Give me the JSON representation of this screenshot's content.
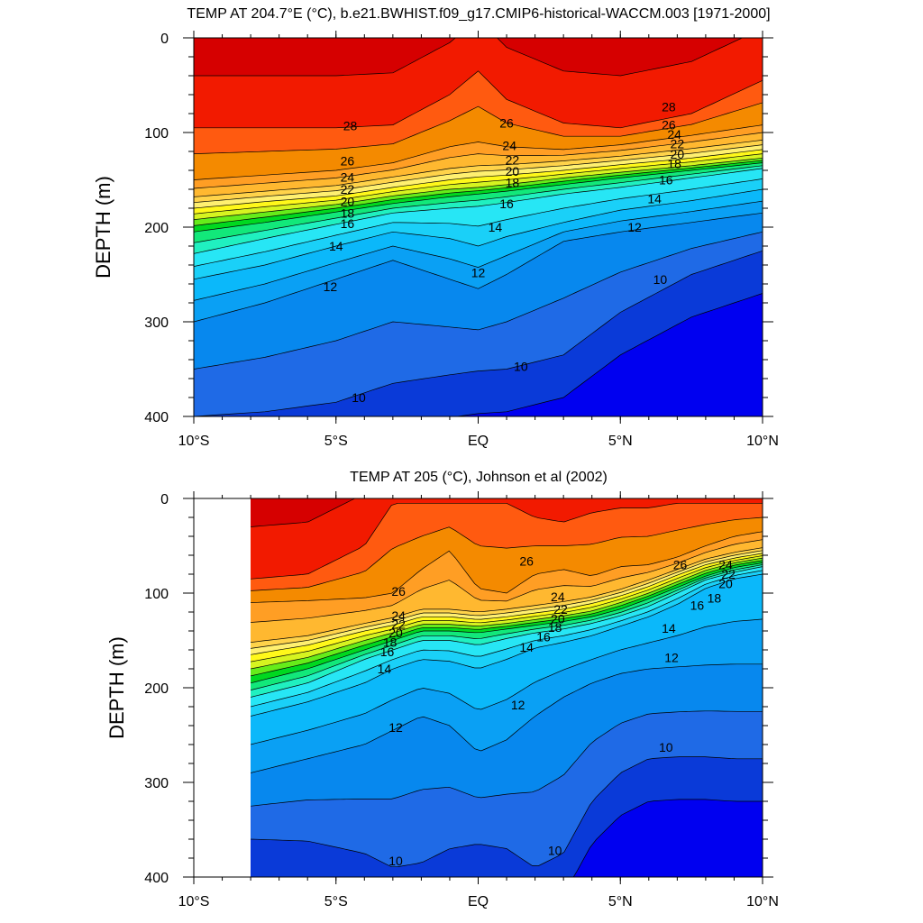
{
  "chart_data": [
    {
      "type": "contour",
      "title": "TEMP AT 204.7°E (°C), b.e21.BWHIST.f09_g17.CMIP6-historical-WACCM.003 [1971-2000]",
      "xlabel": "",
      "ylabel": "DEPTH (m)",
      "xlim": [
        -10,
        10
      ],
      "ylim": [
        400,
        0
      ],
      "x_ticks": [
        -10,
        -5,
        0,
        5,
        10
      ],
      "x_tick_labels": [
        "10°S",
        "5°S",
        "EQ",
        "5°N",
        "10°N"
      ],
      "y_ticks": [
        0,
        100,
        200,
        300,
        400
      ],
      "y_tick_labels": [
        "0",
        "100",
        "200",
        "300",
        "400"
      ],
      "data_x_range": [
        -10,
        10
      ],
      "contour_levels": [
        8,
        9,
        10,
        11,
        12,
        13,
        14,
        15,
        16,
        17,
        18,
        19,
        20,
        21,
        22,
        23,
        24,
        25,
        26,
        27,
        28,
        29
      ],
      "isotherm_depths": {
        "x": [
          -10,
          -7.5,
          -5,
          -3,
          -1,
          0,
          1,
          3,
          5,
          7.5,
          10
        ],
        "t10": [
          400,
          395,
          385,
          365,
          356,
          352,
          350,
          335,
          290,
          250,
          225
        ],
        "t12": [
          300,
          280,
          255,
          235,
          255,
          265,
          250,
          215,
          205,
          195,
          185
        ],
        "t14": [
          255,
          240,
          220,
          205,
          212,
          220,
          210,
          195,
          182,
          172,
          160
        ],
        "t16": [
          228,
          212,
          197,
          185,
          180,
          178,
          174,
          165,
          158,
          148,
          138
        ],
        "t18": [
          205,
          195,
          184,
          175,
          168,
          165,
          162,
          155,
          148,
          140,
          132
        ],
        "t20": [
          192,
          184,
          176,
          167,
          160,
          158,
          155,
          148,
          142,
          135,
          127
        ],
        "t22": [
          180,
          173,
          167,
          158,
          150,
          147,
          145,
          140,
          134,
          127,
          118
        ],
        "t24": [
          168,
          162,
          156,
          147,
          138,
          135,
          134,
          130,
          125,
          117,
          108
        ],
        "t26": [
          150,
          145,
          140,
          132,
          115,
          110,
          115,
          118,
          113,
          103,
          92
        ],
        "t28": [
          95,
          95,
          95,
          92,
          60,
          35,
          65,
          90,
          95,
          80,
          45
        ]
      },
      "contour_labels": [
        {
          "text": "28",
          "x": -4.5,
          "depth": 93
        },
        {
          "text": "26",
          "x": -4.6,
          "depth": 130
        },
        {
          "text": "24",
          "x": -4.6,
          "depth": 147
        },
        {
          "text": "22",
          "x": -4.6,
          "depth": 160
        },
        {
          "text": "20",
          "x": -4.6,
          "depth": 173
        },
        {
          "text": "18",
          "x": -4.6,
          "depth": 185
        },
        {
          "text": "16",
          "x": -4.6,
          "depth": 196
        },
        {
          "text": "14",
          "x": -5.0,
          "depth": 220
        },
        {
          "text": "12",
          "x": -5.2,
          "depth": 263
        },
        {
          "text": "10",
          "x": -4.2,
          "depth": 380
        },
        {
          "text": "26",
          "x": 1.0,
          "depth": 90
        },
        {
          "text": "24",
          "x": 1.1,
          "depth": 114
        },
        {
          "text": "22",
          "x": 1.2,
          "depth": 129
        },
        {
          "text": "20",
          "x": 1.2,
          "depth": 141
        },
        {
          "text": "18",
          "x": 1.2,
          "depth": 153
        },
        {
          "text": "16",
          "x": 1.0,
          "depth": 175
        },
        {
          "text": "14",
          "x": 0.6,
          "depth": 200
        },
        {
          "text": "12",
          "x": 0.0,
          "depth": 248
        },
        {
          "text": "10",
          "x": 1.5,
          "depth": 347
        },
        {
          "text": "28",
          "x": 6.7,
          "depth": 73
        },
        {
          "text": "26",
          "x": 6.7,
          "depth": 92
        },
        {
          "text": "24",
          "x": 6.9,
          "depth": 102
        },
        {
          "text": "22",
          "x": 7.0,
          "depth": 112
        },
        {
          "text": "20",
          "x": 7.0,
          "depth": 123
        },
        {
          "text": "18",
          "x": 6.9,
          "depth": 133
        },
        {
          "text": "16",
          "x": 6.6,
          "depth": 150
        },
        {
          "text": "14",
          "x": 6.2,
          "depth": 170
        },
        {
          "text": "12",
          "x": 5.5,
          "depth": 200
        },
        {
          "text": "10",
          "x": 6.4,
          "depth": 255
        }
      ]
    },
    {
      "type": "contour",
      "title": "TEMP AT 205 (°C), Johnson et al (2002)",
      "xlabel": "",
      "ylabel": "DEPTH (m)",
      "xlim": [
        -10,
        10
      ],
      "ylim": [
        400,
        0
      ],
      "x_ticks": [
        -10,
        -5,
        0,
        5,
        10
      ],
      "x_tick_labels": [
        "10°S",
        "5°S",
        "EQ",
        "5°N",
        "10°N"
      ],
      "y_ticks": [
        0,
        100,
        200,
        300,
        400
      ],
      "y_tick_labels": [
        "0",
        "100",
        "200",
        "300",
        "400"
      ],
      "data_x_range": [
        -8,
        10
      ],
      "contour_levels": [
        8,
        9,
        10,
        11,
        12,
        13,
        14,
        15,
        16,
        17,
        18,
        19,
        20,
        21,
        22,
        23,
        24,
        25,
        26,
        27,
        28,
        29
      ],
      "isotherm_depths": {
        "x": [
          -8,
          -6,
          -4,
          -3,
          -2,
          -1,
          0,
          1,
          2,
          3,
          4,
          5,
          6,
          7,
          8,
          9,
          10
        ],
        "t10": [
          360,
          362,
          375,
          390,
          385,
          370,
          365,
          370,
          390,
          375,
          320,
          290,
          275,
          273,
          273,
          275,
          275
        ],
        "t12": [
          290,
          275,
          260,
          245,
          230,
          240,
          268,
          255,
          230,
          210,
          195,
          185,
          180,
          178,
          176,
          175,
          175
        ],
        "t14": [
          230,
          215,
          195,
          180,
          170,
          172,
          180,
          170,
          158,
          152,
          145,
          135,
          125,
          112,
          95,
          85,
          80
        ],
        "t16": [
          210,
          195,
          170,
          160,
          150,
          150,
          155,
          148,
          142,
          138,
          132,
          124,
          114,
          100,
          86,
          78,
          72
        ],
        "t18": [
          195,
          180,
          160,
          150,
          140,
          140,
          142,
          138,
          134,
          130,
          125,
          117,
          106,
          94,
          82,
          73,
          68
        ],
        "t20": [
          180,
          168,
          150,
          142,
          133,
          133,
          135,
          132,
          128,
          124,
          119,
          110,
          100,
          88,
          76,
          68,
          63
        ],
        "t22": [
          165,
          155,
          140,
          134,
          125,
          125,
          128,
          125,
          121,
          117,
          111,
          103,
          93,
          81,
          70,
          63,
          58
        ],
        "t24": [
          152,
          145,
          132,
          126,
          117,
          117,
          120,
          117,
          113,
          109,
          104,
          96,
          86,
          75,
          64,
          57,
          52
        ],
        "t26": [
          110,
          108,
          105,
          100,
          75,
          55,
          95,
          100,
          80,
          75,
          82,
          72,
          70,
          62,
          50,
          40,
          35
        ],
        "t28": [
          85,
          80,
          50,
          5,
          5,
          5,
          5,
          5,
          20,
          25,
          15,
          10,
          10,
          5,
          5,
          5,
          5
        ]
      },
      "contour_labels": [
        {
          "text": "26",
          "x": -2.8,
          "depth": 98
        },
        {
          "text": "24",
          "x": -2.8,
          "depth": 124
        },
        {
          "text": "22",
          "x": -2.8,
          "depth": 133
        },
        {
          "text": "20",
          "x": -2.9,
          "depth": 142
        },
        {
          "text": "18",
          "x": -3.1,
          "depth": 152
        },
        {
          "text": "16",
          "x": -3.2,
          "depth": 162
        },
        {
          "text": "14",
          "x": -3.3,
          "depth": 180
        },
        {
          "text": "12",
          "x": -2.9,
          "depth": 242
        },
        {
          "text": "10",
          "x": -2.9,
          "depth": 383
        },
        {
          "text": "26",
          "x": 1.7,
          "depth": 66
        },
        {
          "text": "24",
          "x": 2.8,
          "depth": 104
        },
        {
          "text": "22",
          "x": 2.9,
          "depth": 117
        },
        {
          "text": "20",
          "x": 2.8,
          "depth": 127
        },
        {
          "text": "18",
          "x": 2.7,
          "depth": 136
        },
        {
          "text": "16",
          "x": 2.3,
          "depth": 146
        },
        {
          "text": "14",
          "x": 1.7,
          "depth": 157
        },
        {
          "text": "12",
          "x": 1.4,
          "depth": 218
        },
        {
          "text": "10",
          "x": 2.7,
          "depth": 372
        },
        {
          "text": "26",
          "x": 7.1,
          "depth": 70
        },
        {
          "text": "24",
          "x": 8.7,
          "depth": 70
        },
        {
          "text": "22",
          "x": 8.8,
          "depth": 80
        },
        {
          "text": "20",
          "x": 8.7,
          "depth": 90
        },
        {
          "text": "18",
          "x": 8.3,
          "depth": 105
        },
        {
          "text": "16",
          "x": 7.7,
          "depth": 113
        },
        {
          "text": "14",
          "x": 6.7,
          "depth": 137
        },
        {
          "text": "12",
          "x": 6.8,
          "depth": 168
        },
        {
          "text": "10",
          "x": 6.6,
          "depth": 263
        }
      ]
    }
  ]
}
